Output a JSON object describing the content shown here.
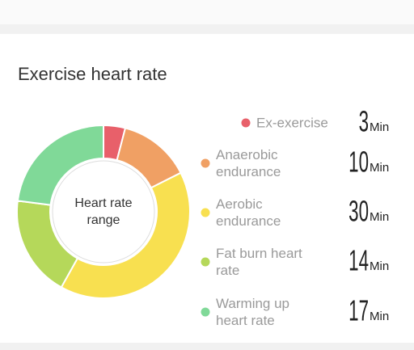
{
  "chart_data": {
    "type": "pie",
    "title": "Exercise heart rate",
    "center_label": [
      "Heart rate",
      "range"
    ],
    "unit": "Min",
    "categories": [
      "Ex-exercise",
      "Anaerobic endurance",
      "Aerobic endurance",
      "Fat burn heart rate",
      "Warming up heart rate"
    ],
    "values": [
      3,
      10,
      30,
      14,
      17
    ],
    "colors": [
      "#e8606a",
      "#f0a064",
      "#f8e050",
      "#b5d85a",
      "#80d998"
    ]
  }
}
